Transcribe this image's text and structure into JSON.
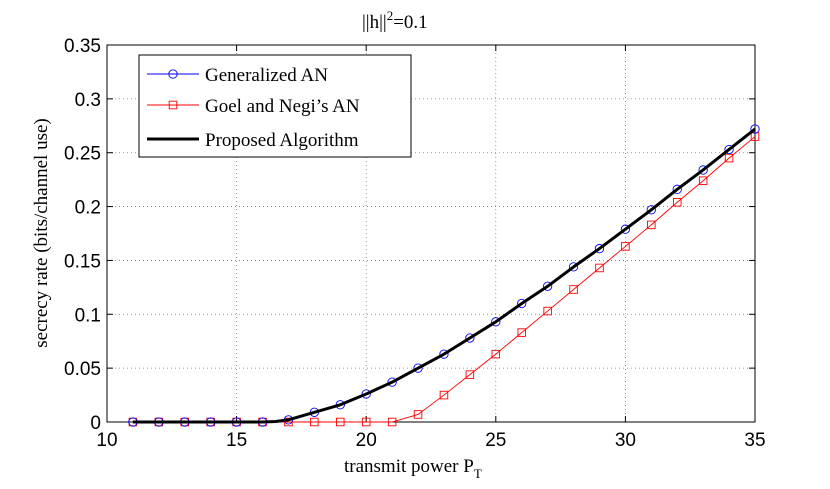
{
  "chart_data": {
    "type": "line",
    "title": "||h||",
    "title_superscript": "2",
    "title_suffix": "=0.1",
    "xlabel": "transmit power P",
    "xlabel_subscript": "T",
    "ylabel": "secrecy rate (bits/channel use)",
    "xlim": [
      10,
      35
    ],
    "ylim": [
      0,
      0.35
    ],
    "xticks": [
      10,
      15,
      20,
      25,
      30,
      35
    ],
    "yticks": [
      0,
      0.05,
      0.1,
      0.15,
      0.2,
      0.25,
      0.3,
      0.35
    ],
    "ytick_labels": [
      "0",
      "0.05",
      "0.1",
      "0.15",
      "0.2",
      "0.25",
      "0.3",
      "0.35"
    ],
    "grid": true,
    "legend_position": "top-left",
    "x": [
      11,
      12,
      13,
      14,
      15,
      16,
      17,
      18,
      19,
      20,
      21,
      22,
      23,
      24,
      25,
      26,
      27,
      28,
      29,
      30,
      31,
      32,
      33,
      34,
      35
    ],
    "series": [
      {
        "name": "Generalized AN",
        "color": "#0000ff",
        "marker": "circle",
        "values": [
          0,
          0,
          0,
          0,
          0,
          0,
          0.002,
          0.009,
          0.016,
          0.026,
          0.037,
          0.05,
          0.063,
          0.078,
          0.093,
          0.11,
          0.126,
          0.144,
          0.161,
          0.179,
          0.197,
          0.216,
          0.234,
          0.253,
          0.272
        ]
      },
      {
        "name": "Goel and Negi’s AN",
        "color": "#ff0000",
        "marker": "square",
        "values": [
          0,
          0,
          0,
          0,
          0,
          0,
          0,
          0,
          0,
          0,
          0,
          0.007,
          0.025,
          0.044,
          0.063,
          0.083,
          0.103,
          0.123,
          0.143,
          0.163,
          0.183,
          0.204,
          0.224,
          0.245,
          0.265
        ]
      },
      {
        "name": "Proposed Algorithm",
        "color": "#000000",
        "marker": "none",
        "x": [
          11,
          12,
          13,
          14,
          15,
          16,
          16.5,
          17,
          18,
          19,
          20,
          21,
          22,
          23,
          24,
          25,
          26,
          27,
          28,
          29,
          30,
          31,
          32,
          33,
          34,
          35
        ],
        "values": [
          0,
          0,
          0,
          0,
          0,
          0,
          0.0005,
          0.002,
          0.009,
          0.016,
          0.026,
          0.037,
          0.05,
          0.063,
          0.078,
          0.093,
          0.11,
          0.126,
          0.144,
          0.161,
          0.179,
          0.197,
          0.216,
          0.234,
          0.253,
          0.272
        ]
      }
    ]
  }
}
